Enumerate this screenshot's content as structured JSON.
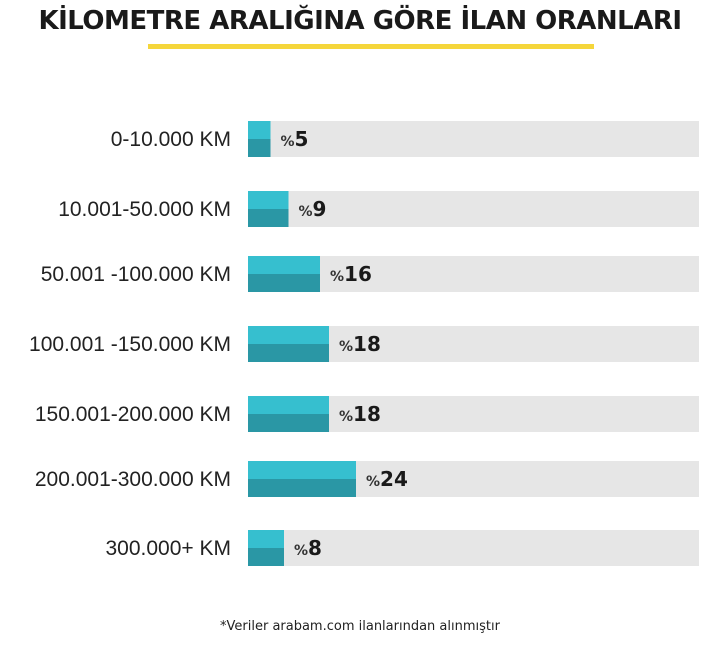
{
  "title": "KİLOMETRE ARALIĞINA GÖRE İLAN ORANLARI",
  "footnote": "*Veriler arabam.com ilanlarından alınmıştır",
  "percent_prefix": "%",
  "colors": {
    "bar_top": "#36bfcf",
    "bar_bottom": "#2a97a5",
    "track": "#e6e6e6",
    "title_underline": "#f5d63b"
  },
  "chart_data": {
    "type": "bar",
    "orientation": "horizontal",
    "categories": [
      "0-10.000 KM",
      "10.001-50.000 KM",
      "50.001 -100.000 KM",
      "100.001 -150.000 KM",
      "150.001-200.000 KM",
      "200.001-300.000 KM",
      "300.000+ KM"
    ],
    "values": [
      5,
      9,
      16,
      18,
      18,
      24,
      8
    ],
    "value_labels": [
      "5",
      "9",
      "16",
      "18",
      "18",
      "24",
      "8"
    ],
    "unit": "%",
    "xlim": [
      0,
      100
    ],
    "grid": false,
    "title": "KİLOMETRE ARALIĞINA GÖRE İLAN ORANLARI"
  }
}
